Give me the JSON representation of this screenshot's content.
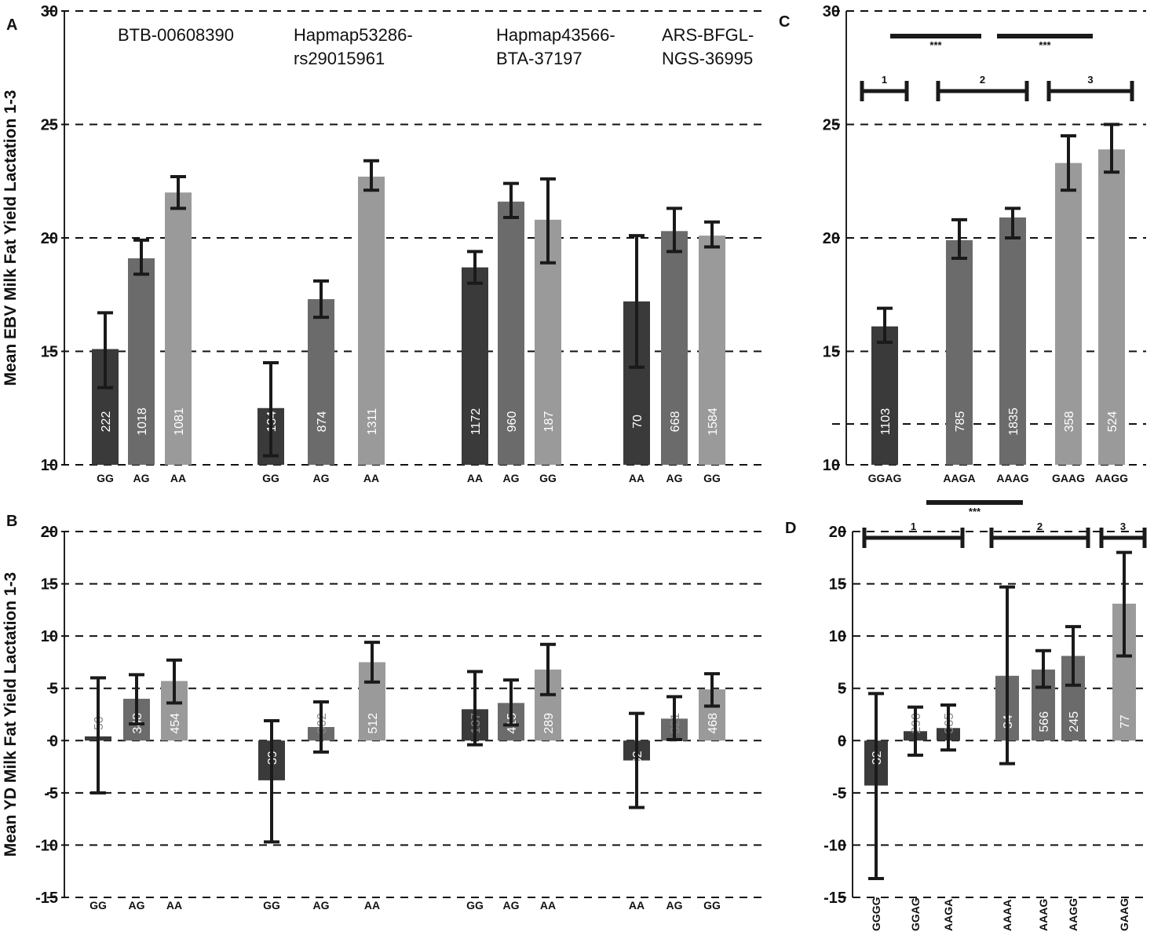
{
  "colors": {
    "dark": "#3a3a3a",
    "mid": "#6b6b6b",
    "light": "#9a9a9a",
    "error": "#1a1a1a",
    "grid": "#111111"
  },
  "chart_data": [
    {
      "panel": "A",
      "type": "bar",
      "ylabel": "Mean EBV Milk Fat Yield Lactation 1-3",
      "ylim": [
        10,
        30
      ],
      "yticks": [
        10,
        15,
        20,
        25,
        30
      ],
      "grid": "dashed",
      "snps": [
        "BTB-00608390",
        "Hapmap53286-rs29015961",
        "Hapmap43566-BTA-37197",
        "ARS-BFGL-NGS-36995"
      ],
      "snp_lines": [
        [
          "BTB-00608390"
        ],
        [
          "Hapmap53286-",
          "rs29015961"
        ],
        [
          "Hapmap43566-",
          "BTA-37197"
        ],
        [
          "ARS-BFGL-",
          "NGS-36995"
        ]
      ],
      "bars": [
        {
          "group": 0,
          "genotype": "GG",
          "value": 15.1,
          "err_low": 13.4,
          "err_high": 16.7,
          "count": "222",
          "shade": "dark"
        },
        {
          "group": 0,
          "genotype": "AG",
          "value": 19.1,
          "err_low": 18.4,
          "err_high": 19.9,
          "count": "1018",
          "shade": "mid"
        },
        {
          "group": 0,
          "genotype": "AA",
          "value": 22.0,
          "err_low": 21.3,
          "err_high": 22.7,
          "count": "1081",
          "shade": "light"
        },
        {
          "group": 1,
          "genotype": "GG",
          "value": 12.5,
          "err_low": 10.4,
          "err_high": 14.5,
          "count": "134",
          "shade": "dark"
        },
        {
          "group": 1,
          "genotype": "AG",
          "value": 17.3,
          "err_low": 16.5,
          "err_high": 18.1,
          "count": "874",
          "shade": "mid"
        },
        {
          "group": 1,
          "genotype": "AA",
          "value": 22.7,
          "err_low": 22.1,
          "err_high": 23.4,
          "count": "1311",
          "shade": "light"
        },
        {
          "group": 2,
          "genotype": "AA",
          "value": 18.7,
          "err_low": 18.0,
          "err_high": 19.4,
          "count": "1172",
          "shade": "dark"
        },
        {
          "group": 2,
          "genotype": "AG",
          "value": 21.6,
          "err_low": 20.9,
          "err_high": 22.4,
          "count": "960",
          "shade": "mid"
        },
        {
          "group": 2,
          "genotype": "GG",
          "value": 20.8,
          "err_low": 18.9,
          "err_high": 22.6,
          "count": "187",
          "shade": "light"
        },
        {
          "group": 3,
          "genotype": "AA",
          "value": 17.2,
          "err_low": 14.3,
          "err_high": 20.1,
          "count": "70",
          "shade": "dark"
        },
        {
          "group": 3,
          "genotype": "AG",
          "value": 20.3,
          "err_low": 19.4,
          "err_high": 21.3,
          "count": "668",
          "shade": "mid"
        },
        {
          "group": 3,
          "genotype": "GG",
          "value": 20.1,
          "err_low": 19.6,
          "err_high": 20.7,
          "count": "1584",
          "shade": "light"
        }
      ]
    },
    {
      "panel": "B",
      "type": "bar",
      "ylabel": "Mean YD Milk Fat Yield Lactation 1-3",
      "ylim": [
        -15,
        20
      ],
      "yticks": [
        -15,
        -10,
        -5,
        0,
        5,
        10,
        15,
        20
      ],
      "grid": "dashed",
      "bars": [
        {
          "group": 0,
          "genotype": "GG",
          "value": 0.4,
          "err_low": -5.0,
          "err_high": 6.0,
          "count": "50",
          "shade": "dark"
        },
        {
          "group": 0,
          "genotype": "AG",
          "value": 4.0,
          "err_low": 1.6,
          "err_high": 6.3,
          "count": "348",
          "shade": "mid"
        },
        {
          "group": 0,
          "genotype": "AA",
          "value": 5.7,
          "err_low": 3.6,
          "err_high": 7.7,
          "count": "454",
          "shade": "light"
        },
        {
          "group": 1,
          "genotype": "GG",
          "value": -3.8,
          "err_low": -9.7,
          "err_high": 1.9,
          "count": "39",
          "shade": "dark"
        },
        {
          "group": 1,
          "genotype": "AG",
          "value": 1.3,
          "err_low": -1.1,
          "err_high": 3.7,
          "count": "302",
          "shade": "mid"
        },
        {
          "group": 1,
          "genotype": "AA",
          "value": 7.5,
          "err_low": 5.6,
          "err_high": 9.4,
          "count": "512",
          "shade": "light"
        },
        {
          "group": 2,
          "genotype": "GG",
          "value": 3.0,
          "err_low": -0.4,
          "err_high": 6.6,
          "count": "137",
          "shade": "dark"
        },
        {
          "group": 2,
          "genotype": "AG",
          "value": 3.6,
          "err_low": 1.5,
          "err_high": 5.8,
          "count": "415",
          "shade": "mid"
        },
        {
          "group": 2,
          "genotype": "AA",
          "value": 6.8,
          "err_low": 4.4,
          "err_high": 9.2,
          "count": "289",
          "shade": "light"
        },
        {
          "group": 3,
          "genotype": "AA",
          "value": -1.9,
          "err_low": -6.4,
          "err_high": 2.6,
          "count": "62",
          "shade": "dark"
        },
        {
          "group": 3,
          "genotype": "AG",
          "value": 2.1,
          "err_low": 0.1,
          "err_high": 4.2,
          "count": "321",
          "shade": "mid"
        },
        {
          "group": 3,
          "genotype": "GG",
          "value": 4.9,
          "err_low": 3.3,
          "err_high": 6.4,
          "count": "468",
          "shade": "light"
        }
      ]
    },
    {
      "panel": "C",
      "type": "bar",
      "ylim": [
        10,
        30
      ],
      "yticks": [
        10,
        15,
        20,
        25,
        30
      ],
      "grid": "dashed",
      "extra_gridline": 11.8,
      "bars": [
        {
          "haplotype": "GGAG",
          "value": 16.1,
          "err_low": 15.4,
          "err_high": 16.9,
          "count": "1103",
          "shade": "dark"
        },
        {
          "haplotype": "AAGA",
          "value": 19.9,
          "err_low": 19.1,
          "err_high": 20.8,
          "count": "785",
          "shade": "mid"
        },
        {
          "haplotype": "AAAG",
          "value": 20.9,
          "err_low": 20.0,
          "err_high": 21.3,
          "count": "1835",
          "shade": "mid"
        },
        {
          "haplotype": "GAAG",
          "value": 23.3,
          "err_low": 22.1,
          "err_high": 24.5,
          "count": "358",
          "shade": "light"
        },
        {
          "haplotype": "AAGG",
          "value": 23.9,
          "err_low": 22.9,
          "err_high": 25.0,
          "count": "524",
          "shade": "light"
        }
      ],
      "groups": [
        {
          "label": "1",
          "from": 0,
          "to": 0
        },
        {
          "label": "2",
          "from": 1,
          "to": 2
        },
        {
          "label": "3",
          "from": 3,
          "to": 4
        }
      ],
      "significance": [
        {
          "label": "***",
          "from_group": 0,
          "to_group": 1
        },
        {
          "label": "***",
          "from_group": 1,
          "to_group": 2
        }
      ]
    },
    {
      "panel": "D",
      "type": "bar",
      "ylim": [
        -15,
        20
      ],
      "yticks": [
        -15,
        -10,
        -5,
        0,
        5,
        10,
        15,
        20
      ],
      "grid": "dashed",
      "bars": [
        {
          "haplotype": "GGGG",
          "value": -4.3,
          "err_low": -13.2,
          "err_high": 4.5,
          "count": "32",
          "shade": "dark"
        },
        {
          "haplotype": "GGAG",
          "value": 0.9,
          "err_low": -1.4,
          "err_high": 3.2,
          "count": "290",
          "shade": "dark"
        },
        {
          "haplotype": "AAGA",
          "value": 1.2,
          "err_low": -0.9,
          "err_high": 3.4,
          "count": "365",
          "shade": "dark"
        },
        {
          "haplotype": "AAAA",
          "value": 6.2,
          "err_low": -2.2,
          "err_high": 14.7,
          "count": "34",
          "shade": "mid"
        },
        {
          "haplotype": "AAAG",
          "value": 6.8,
          "err_low": 5.1,
          "err_high": 8.6,
          "count": "566",
          "shade": "mid"
        },
        {
          "haplotype": "AAGG",
          "value": 8.1,
          "err_low": 5.3,
          "err_high": 10.9,
          "count": "245",
          "shade": "mid"
        },
        {
          "haplotype": "GAAG",
          "value": 13.1,
          "err_low": 8.1,
          "err_high": 18.0,
          "count": "77",
          "shade": "light"
        }
      ],
      "groups": [
        {
          "label": "1",
          "from": 0,
          "to": 2
        },
        {
          "label": "2",
          "from": 3,
          "to": 5
        },
        {
          "label": "3",
          "from": 6,
          "to": 6
        }
      ],
      "significance": [
        {
          "label": "***",
          "from_group": 0,
          "to_group": 1
        }
      ]
    }
  ]
}
